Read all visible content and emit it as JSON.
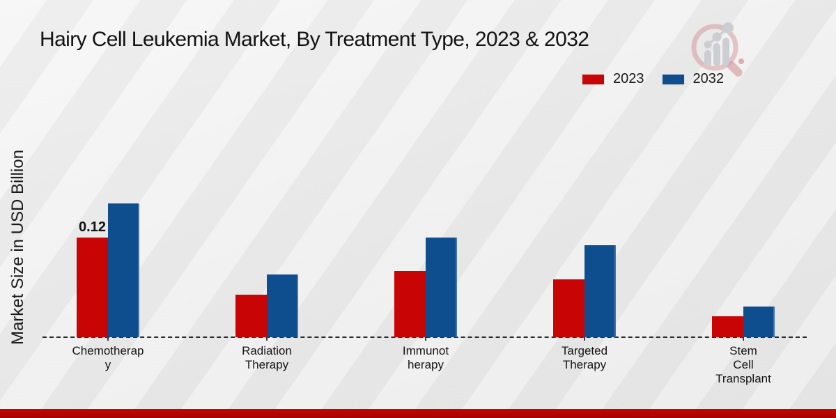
{
  "title": "Hairy Cell Leukemia Market, By Treatment Type, 2023 & 2032",
  "ylabel": "Market Size in USD Billion",
  "chart_data": {
    "type": "bar",
    "title": "Hairy Cell Leukemia Market, By Treatment Type, 2023 & 2032",
    "xlabel": "",
    "ylabel": "Market Size in USD Billion",
    "categories": [
      "Chemotherapy",
      "Radiation Therapy",
      "Immunotherapy",
      "Targeted Therapy",
      "Stem Cell Transplant"
    ],
    "category_wrap": [
      [
        "Chemotherap",
        "y"
      ],
      [
        "Radiation",
        "Therapy"
      ],
      [
        "Immunot",
        "herapy"
      ],
      [
        "Targeted",
        "Therapy"
      ],
      [
        "Stem",
        "Cell",
        "Transplant"
      ]
    ],
    "series": [
      {
        "name": "2023",
        "color": "#c90404",
        "values": [
          0.12,
          0.051,
          0.08,
          0.07,
          0.025
        ]
      },
      {
        "name": "2032",
        "color": "#0e4e8f",
        "values": [
          0.161,
          0.0755,
          0.12,
          0.111,
          0.037
        ]
      }
    ],
    "data_labels": [
      {
        "series_index": 0,
        "category_index": 0,
        "text": "0.12"
      }
    ],
    "ylim": [
      0,
      0.42
    ],
    "grid": false,
    "baseline_style": "dashed",
    "legend_position": "top-right",
    "units": "USD Billion"
  },
  "branding": {
    "watermark_icon": "magnifier-bar-chart-logo",
    "footer_accent_color": "#b30500"
  }
}
